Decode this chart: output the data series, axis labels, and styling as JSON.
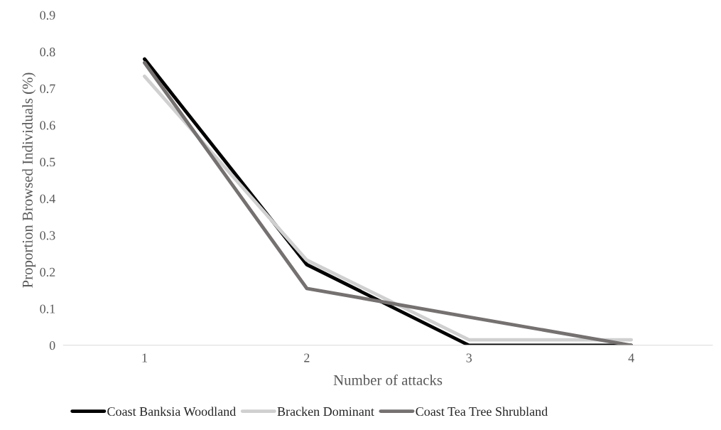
{
  "chart_data": {
    "type": "line",
    "xlabel": "Number of attacks",
    "ylabel": "Proportion Browsed Individuals (%)",
    "categories": [
      "1",
      "2",
      "3",
      "4"
    ],
    "series": [
      {
        "name": "Coast Banksia Woodland",
        "color": "#000000",
        "values": [
          0.78,
          0.22,
          0,
          0
        ]
      },
      {
        "name": "Bracken Dominant",
        "color": "#d0d0d0",
        "values": [
          0.733,
          0.232,
          0.015,
          0.015
        ]
      },
      {
        "name": "Coast Tea Tree Shrubland",
        "color": "#767171",
        "values": [
          0.77,
          0.155,
          0.077,
          0
        ]
      }
    ],
    "ylim": [
      0,
      0.9
    ],
    "yticks": [
      0,
      0.1,
      0.2,
      0.3,
      0.4,
      0.5,
      0.6,
      0.7,
      0.8,
      0.9
    ],
    "grid": false,
    "legend": "bottom",
    "marker": "none",
    "line_style": "solid"
  }
}
